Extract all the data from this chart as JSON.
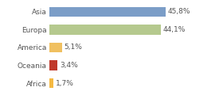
{
  "categories": [
    "Asia",
    "Europa",
    "America",
    "Oceania",
    "Africa"
  ],
  "values": [
    45.8,
    44.1,
    5.1,
    3.4,
    1.7
  ],
  "labels": [
    "45,8%",
    "44,1%",
    "5,1%",
    "3,4%",
    "1,7%"
  ],
  "bar_colors": [
    "#7b9dc7",
    "#b5c98e",
    "#f0c060",
    "#c0392b",
    "#f5b942"
  ],
  "background_color": "#ffffff",
  "label_fontsize": 6.5,
  "category_fontsize": 6.5,
  "xlim": [
    0,
    58
  ]
}
